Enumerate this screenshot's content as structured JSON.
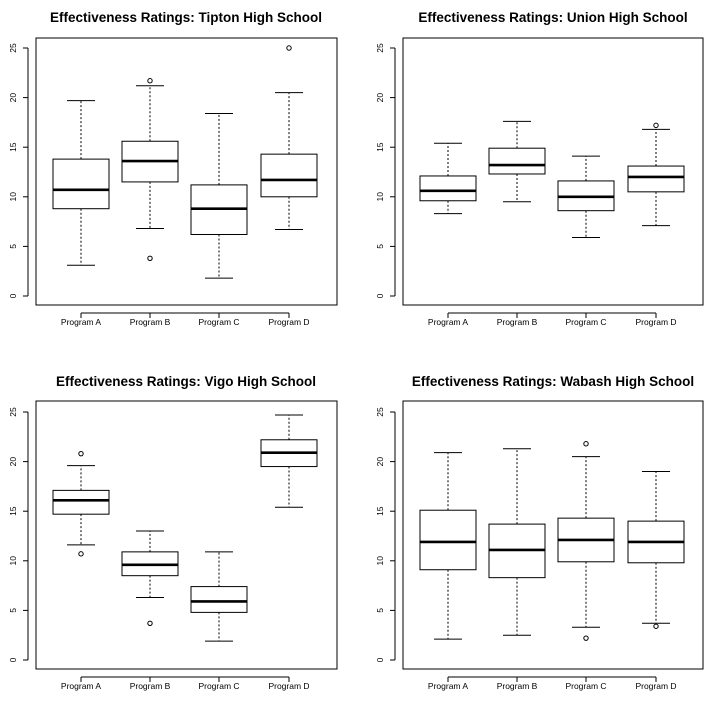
{
  "chart_data": [
    {
      "type": "box",
      "title": "Effectiveness Ratings: Tipton High School",
      "xlabel": "",
      "ylabel": "",
      "ylim": [
        0,
        25
      ],
      "yticks": [
        0,
        5,
        10,
        15,
        20,
        25
      ],
      "categories": [
        "Program A",
        "Program B",
        "Program C",
        "Program D"
      ],
      "boxes": [
        {
          "min": 3.1,
          "q1": 8.8,
          "median": 10.7,
          "q3": 13.8,
          "max": 19.7,
          "outliers": []
        },
        {
          "min": 6.8,
          "q1": 11.5,
          "median": 13.6,
          "q3": 15.6,
          "max": 21.2,
          "outliers": [
            21.7,
            3.8
          ]
        },
        {
          "min": 1.8,
          "q1": 6.2,
          "median": 8.8,
          "q3": 11.2,
          "max": 18.4,
          "outliers": []
        },
        {
          "min": 6.7,
          "q1": 10.0,
          "median": 11.7,
          "q3": 14.3,
          "max": 20.5,
          "outliers": [
            25.0
          ]
        }
      ]
    },
    {
      "type": "box",
      "title": "Effectiveness Ratings: Union High School",
      "xlabel": "",
      "ylabel": "",
      "ylim": [
        0,
        25
      ],
      "yticks": [
        0,
        5,
        10,
        15,
        20,
        25
      ],
      "categories": [
        "Program A",
        "Program B",
        "Program C",
        "Program D"
      ],
      "boxes": [
        {
          "min": 8.3,
          "q1": 9.6,
          "median": 10.6,
          "q3": 12.1,
          "max": 15.4,
          "outliers": []
        },
        {
          "min": 9.5,
          "q1": 12.3,
          "median": 13.2,
          "q3": 14.9,
          "max": 17.6,
          "outliers": []
        },
        {
          "min": 5.9,
          "q1": 8.6,
          "median": 10.0,
          "q3": 11.6,
          "max": 14.1,
          "outliers": []
        },
        {
          "min": 7.1,
          "q1": 10.5,
          "median": 12.0,
          "q3": 13.1,
          "max": 16.8,
          "outliers": [
            17.2
          ]
        }
      ]
    },
    {
      "type": "box",
      "title": "Effectiveness Ratings: Vigo High School",
      "xlabel": "",
      "ylabel": "",
      "ylim": [
        0,
        25
      ],
      "yticks": [
        0,
        5,
        10,
        15,
        20,
        25
      ],
      "categories": [
        "Program A",
        "Program B",
        "Program C",
        "Program D"
      ],
      "boxes": [
        {
          "min": 11.6,
          "q1": 14.7,
          "median": 16.1,
          "q3": 17.1,
          "max": 19.6,
          "outliers": [
            20.8,
            10.7
          ]
        },
        {
          "min": 6.3,
          "q1": 8.5,
          "median": 9.6,
          "q3": 10.9,
          "max": 13.0,
          "outliers": [
            3.7
          ]
        },
        {
          "min": 1.9,
          "q1": 4.8,
          "median": 5.9,
          "q3": 7.4,
          "max": 10.9,
          "outliers": []
        },
        {
          "min": 15.4,
          "q1": 19.5,
          "median": 20.9,
          "q3": 22.2,
          "max": 24.7,
          "outliers": []
        }
      ]
    },
    {
      "type": "box",
      "title": "Effectiveness Ratings: Wabash High School",
      "xlabel": "",
      "ylabel": "",
      "ylim": [
        0,
        25
      ],
      "yticks": [
        0,
        5,
        10,
        15,
        20,
        25
      ],
      "categories": [
        "Program A",
        "Program B",
        "Program C",
        "Program D"
      ],
      "boxes": [
        {
          "min": 2.1,
          "q1": 9.1,
          "median": 11.9,
          "q3": 15.1,
          "max": 20.9,
          "outliers": []
        },
        {
          "min": 2.5,
          "q1": 8.3,
          "median": 11.1,
          "q3": 13.7,
          "max": 21.3,
          "outliers": []
        },
        {
          "min": 3.3,
          "q1": 9.9,
          "median": 12.1,
          "q3": 14.3,
          "max": 20.5,
          "outliers": [
            21.8,
            2.2
          ]
        },
        {
          "min": 3.7,
          "q1": 9.8,
          "median": 11.9,
          "q3": 14.0,
          "max": 19.0,
          "outliers": [
            3.4
          ]
        }
      ]
    }
  ]
}
